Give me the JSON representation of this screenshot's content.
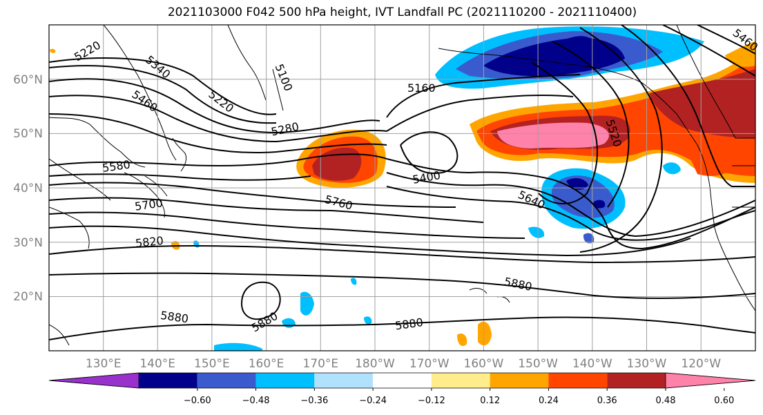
{
  "title": "2021103000 F042 500 hPa height, IVT Landfall PC (2021110200 - 2021110400)",
  "lat_ticks": [
    "60°N",
    "50°N",
    "40°N",
    "30°N",
    "20°N"
  ],
  "lon_ticks": [
    "130°E",
    "140°E",
    "150°E",
    "160°E",
    "170°E",
    "180°W",
    "170°W",
    "160°W",
    "150°W",
    "140°W",
    "130°W",
    "120°W"
  ],
  "contour_labels": [
    "5220",
    "5340",
    "5460",
    "5580",
    "5700",
    "5820",
    "5100",
    "5220",
    "5280",
    "5160",
    "5400",
    "5760",
    "5520",
    "5640",
    "5880",
    "5880",
    "5880",
    "5880",
    "5460"
  ],
  "colorbar": {
    "colors": [
      "#9932CC",
      "#00008B",
      "#3A5BCD",
      "#00BFFF",
      "#B0E2FF",
      "#FFFFFF",
      "#FFEC8B",
      "#FFA500",
      "#FF4500",
      "#B22222",
      "#FF82AB"
    ],
    "labels": [
      "−0.60",
      "−0.48",
      "−0.36",
      "−0.24",
      "−0.12",
      "0.12",
      "0.24",
      "0.36",
      "0.48",
      "0.60"
    ]
  }
}
